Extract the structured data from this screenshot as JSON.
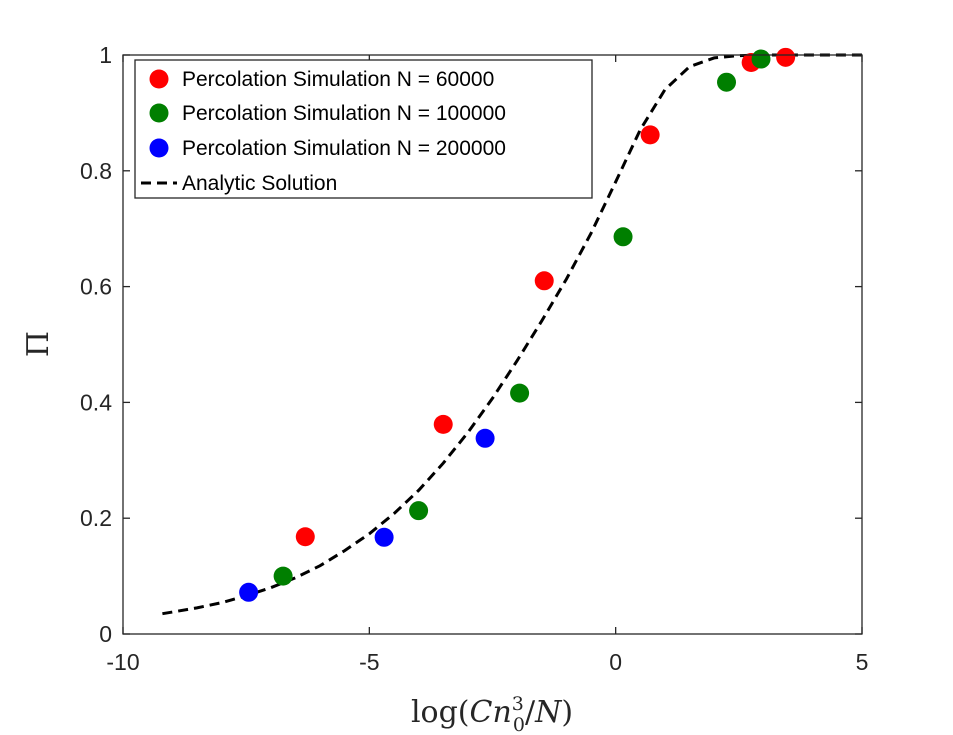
{
  "chart_data": {
    "type": "scatter",
    "title": "",
    "xlabel": "log(Cn_0^3/N)",
    "ylabel": "Π",
    "xlim": [
      -10,
      5
    ],
    "ylim": [
      0,
      1
    ],
    "xticks": [
      -10,
      -5,
      0,
      5
    ],
    "yticks": [
      0,
      0.2,
      0.4,
      0.6,
      0.8,
      1
    ],
    "xtick_labels": [
      "-10",
      "-5",
      "0",
      "5"
    ],
    "ytick_labels": [
      "0",
      "0.2",
      "0.4",
      "0.6",
      "0.8",
      "1"
    ],
    "grid": false,
    "legend_position": "top-left",
    "series": [
      {
        "name": "Percolation Simulation N = 60000",
        "kind": "markers",
        "color": "#ff0000",
        "x": [
          -6.3,
          -3.5,
          -1.45,
          0.7,
          2.75,
          3.45
        ],
        "y": [
          0.168,
          0.362,
          0.61,
          0.862,
          0.987,
          0.996
        ]
      },
      {
        "name": "Percolation Simulation N = 100000",
        "kind": "markers",
        "color": "#007f00",
        "x": [
          -6.75,
          -4.0,
          -1.95,
          0.15,
          2.25,
          2.95
        ],
        "y": [
          0.1,
          0.213,
          0.416,
          0.686,
          0.953,
          0.993
        ]
      },
      {
        "name": "Percolation Simulation N = 200000",
        "kind": "markers",
        "color": "#0000ff",
        "x": [
          -7.45,
          -4.7,
          -2.65
        ],
        "y": [
          0.072,
          0.167,
          0.338
        ]
      },
      {
        "name": "Analytic Solution",
        "kind": "line",
        "style": "dashed",
        "color": "#000000",
        "x": [
          -9.2,
          -8.5,
          -8.0,
          -7.5,
          -7.0,
          -6.5,
          -6.0,
          -5.5,
          -5.0,
          -4.5,
          -4.0,
          -3.5,
          -3.0,
          -2.5,
          -2.0,
          -1.5,
          -1.0,
          -0.5,
          0.0,
          0.5,
          1.0,
          1.5,
          2.0,
          2.5,
          3.0,
          3.5,
          4.0,
          4.5,
          5.0
        ],
        "y": [
          0.035,
          0.045,
          0.054,
          0.066,
          0.08,
          0.097,
          0.118,
          0.144,
          0.173,
          0.208,
          0.248,
          0.295,
          0.348,
          0.407,
          0.472,
          0.541,
          0.613,
          0.692,
          0.781,
          0.871,
          0.94,
          0.98,
          0.995,
          0.999,
          1.0,
          1.0,
          1.0,
          1.0,
          1.0
        ]
      }
    ]
  }
}
